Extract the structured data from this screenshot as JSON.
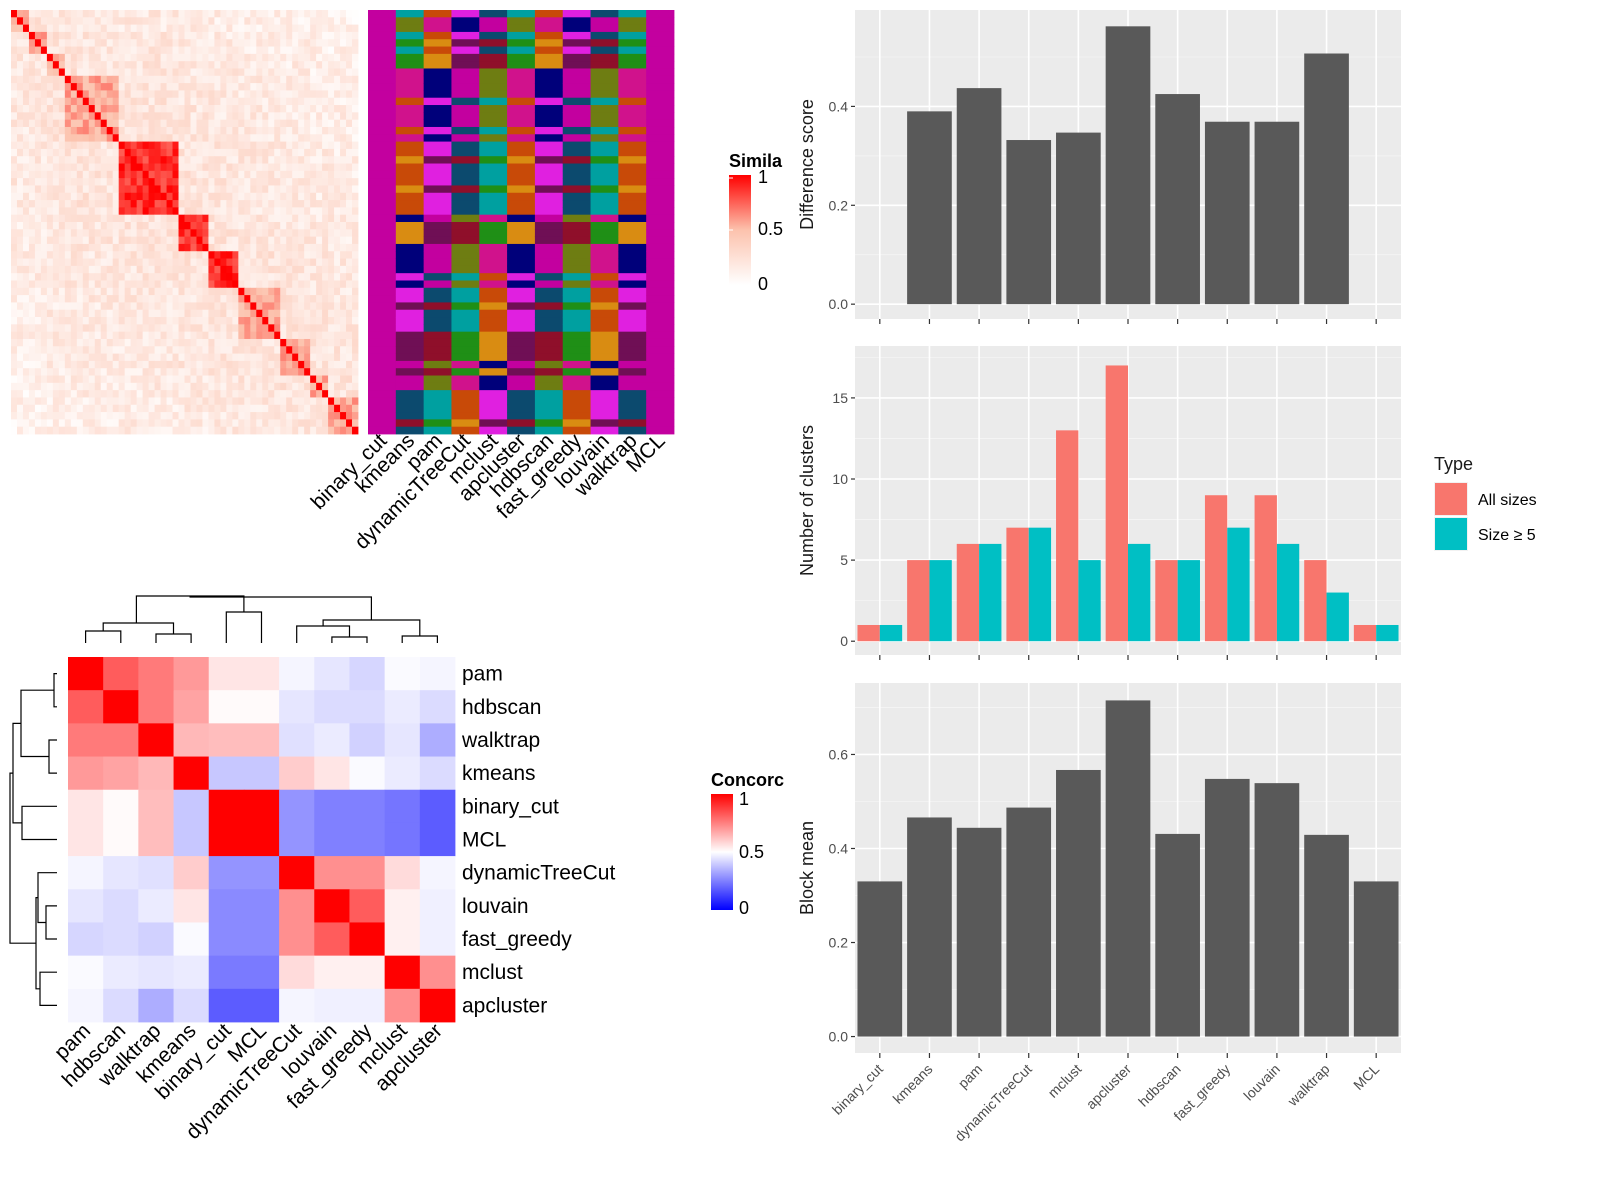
{
  "chart_data": [
    {
      "id": "similarity-heatmap",
      "type": "heatmap",
      "title": "",
      "color_scale": {
        "low": "#ffffff",
        "mid": "#fcc2ad",
        "high": "#ff0000"
      },
      "legend": {
        "title": "Simila",
        "ticks": [
          "1",
          "0.5",
          "0"
        ],
        "placement": "right"
      },
      "membership_columns": [
        "binary_cut",
        "kmeans",
        "pam",
        "dynamicTreeCut",
        "mclust",
        "apcluster",
        "hdbscan",
        "fast_greedy",
        "louvain",
        "walktrap",
        "MCL"
      ]
    },
    {
      "id": "difference-score",
      "type": "bar",
      "categories": [
        "binary_cut",
        "kmeans",
        "pam",
        "dynamicTreeCut",
        "mclust",
        "apcluster",
        "hdbscan",
        "fast_greedy",
        "louvain",
        "walktrap",
        "MCL"
      ],
      "values": [
        0,
        0.39,
        0.437,
        0.332,
        0.347,
        0.562,
        0.425,
        0.369,
        0.369,
        0.507,
        0
      ],
      "xlabel": "",
      "ylabel": "Difference score",
      "ylim": [
        -0.03,
        0.595
      ],
      "yticks": [
        0.0,
        0.2,
        0.4
      ],
      "ytick_labels": [
        "0.0",
        "0.2",
        "0.4"
      ],
      "grid": true
    },
    {
      "id": "number-of-clusters",
      "type": "bar",
      "categories": [
        "binary_cut",
        "kmeans",
        "pam",
        "dynamicTreeCut",
        "mclust",
        "apcluster",
        "hdbscan",
        "fast_greedy",
        "louvain",
        "walktrap",
        "MCL"
      ],
      "series": [
        {
          "name": "All sizes",
          "color": "#f8766d",
          "values": [
            1,
            5,
            6,
            7,
            13,
            17,
            5,
            9,
            9,
            5,
            1
          ]
        },
        {
          "name": "Size ≥ 5",
          "color": "#00bfc4",
          "values": [
            1,
            5,
            6,
            7,
            5,
            6,
            5,
            7,
            6,
            3,
            1
          ]
        }
      ],
      "legend": {
        "title": "Type",
        "placement": "right"
      },
      "xlabel": "",
      "ylabel": "Number of clusters",
      "ylim": [
        -0.85,
        18.2
      ],
      "yticks": [
        0,
        5,
        10,
        15
      ],
      "ytick_labels": [
        "0",
        "5",
        "10",
        "15"
      ],
      "grid": true
    },
    {
      "id": "block-mean",
      "type": "bar",
      "categories": [
        "binary_cut",
        "kmeans",
        "pam",
        "dynamicTreeCut",
        "mclust",
        "apcluster",
        "hdbscan",
        "fast_greedy",
        "louvain",
        "walktrap",
        "MCL"
      ],
      "values": [
        0.33,
        0.466,
        0.444,
        0.487,
        0.567,
        0.715,
        0.431,
        0.548,
        0.539,
        0.429,
        0.33
      ],
      "xlabel": "",
      "ylabel": "Block mean",
      "ylim": [
        -0.035,
        0.752
      ],
      "yticks": [
        0.0,
        0.2,
        0.4,
        0.6
      ],
      "ytick_labels": [
        "0.0",
        "0.2",
        "0.4",
        "0.6"
      ],
      "grid": true
    },
    {
      "id": "concordance-heatmap",
      "type": "heatmap",
      "rows": [
        "pam",
        "hdbscan",
        "walktrap",
        "kmeans",
        "binary_cut",
        "MCL",
        "dynamicTreeCut",
        "louvain",
        "fast_greedy",
        "mclust",
        "apcluster"
      ],
      "cols": [
        "pam",
        "hdbscan",
        "walktrap",
        "kmeans",
        "binary_cut",
        "MCL",
        "dynamicTreeCut",
        "louvain",
        "fast_greedy",
        "mclust",
        "apcluster"
      ],
      "values": [
        [
          1.0,
          0.82,
          0.76,
          0.7,
          0.55,
          0.55,
          0.48,
          0.45,
          0.42,
          0.49,
          0.48
        ],
        [
          0.82,
          1.0,
          0.76,
          0.68,
          0.51,
          0.51,
          0.45,
          0.43,
          0.43,
          0.46,
          0.43
        ],
        [
          0.76,
          0.76,
          1.0,
          0.64,
          0.63,
          0.63,
          0.44,
          0.46,
          0.41,
          0.45,
          0.34
        ],
        [
          0.7,
          0.68,
          0.64,
          1.0,
          0.39,
          0.39,
          0.6,
          0.55,
          0.49,
          0.46,
          0.43
        ],
        [
          0.55,
          0.51,
          0.63,
          0.39,
          1.0,
          1.0,
          0.29,
          0.25,
          0.25,
          0.23,
          0.18
        ],
        [
          0.55,
          0.51,
          0.63,
          0.39,
          1.0,
          1.0,
          0.29,
          0.25,
          0.25,
          0.23,
          0.18
        ],
        [
          0.48,
          0.45,
          0.44,
          0.6,
          0.29,
          0.29,
          1.0,
          0.72,
          0.72,
          0.57,
          0.48
        ],
        [
          0.45,
          0.43,
          0.46,
          0.55,
          0.27,
          0.27,
          0.72,
          1.0,
          0.82,
          0.53,
          0.47
        ],
        [
          0.42,
          0.43,
          0.41,
          0.49,
          0.27,
          0.27,
          0.72,
          0.82,
          1.0,
          0.53,
          0.47
        ],
        [
          0.49,
          0.46,
          0.45,
          0.46,
          0.24,
          0.24,
          0.57,
          0.53,
          0.53,
          1.0,
          0.72
        ],
        [
          0.48,
          0.43,
          0.34,
          0.43,
          0.18,
          0.18,
          0.48,
          0.47,
          0.47,
          0.72,
          1.0
        ]
      ],
      "color_scale": {
        "low": "#0000ff",
        "mid": "#ffffff",
        "high": "#ff0000"
      },
      "legend": {
        "title": "Concorc",
        "ticks": [
          "1",
          "0.5",
          "0"
        ],
        "placement": "right"
      }
    }
  ]
}
